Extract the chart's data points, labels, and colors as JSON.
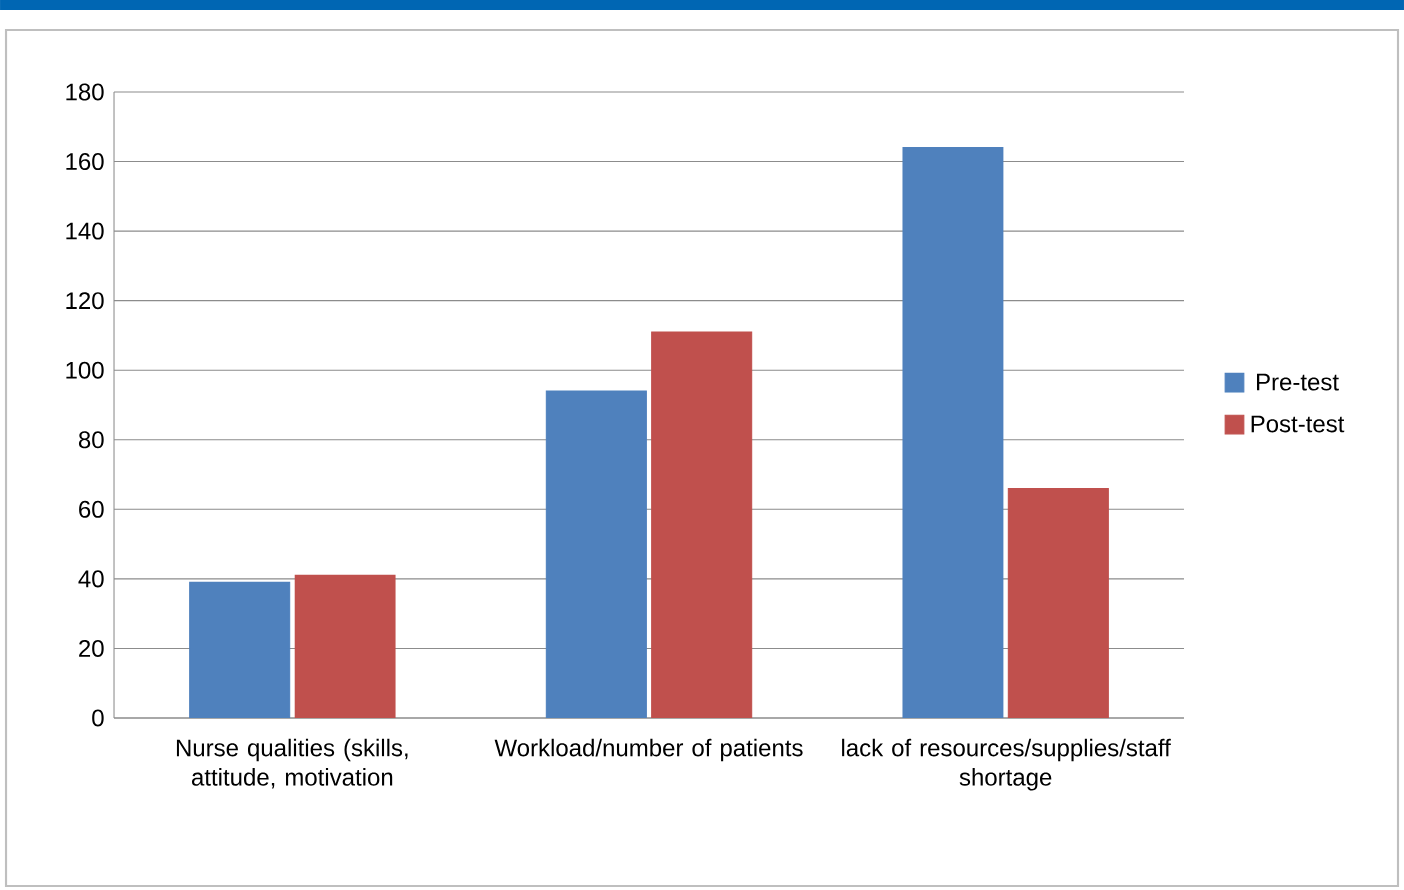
{
  "chart_data": {
    "type": "bar",
    "categories": [
      "Nurse qualities (skills, attitude, motivation",
      "Workload/number of patients",
      "lack of resources/supplies/staff shortage"
    ],
    "series": [
      {
        "name": "Pre-test",
        "color": "#4f81bd",
        "values": [
          39,
          94,
          164
        ]
      },
      {
        "name": "Post-test",
        "color": "#c0504d",
        "values": [
          41,
          111,
          66
        ]
      }
    ],
    "ylim": [
      0,
      180
    ],
    "yticks": [
      0,
      20,
      40,
      60,
      80,
      100,
      120,
      140,
      160,
      180
    ],
    "grid": "y",
    "legend": "right"
  }
}
